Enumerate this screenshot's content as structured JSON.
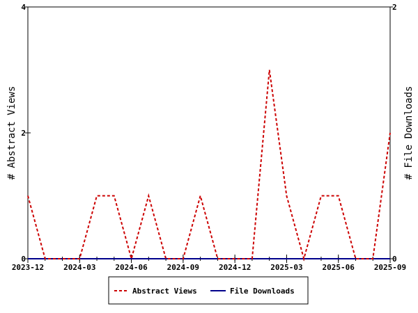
{
  "chart_data": {
    "type": "line",
    "x": [
      "2023-12",
      "2024-01",
      "2024-02",
      "2024-03",
      "2024-04",
      "2024-05",
      "2024-06",
      "2024-07",
      "2024-08",
      "2024-09",
      "2024-10",
      "2024-11",
      "2024-12",
      "2025-01",
      "2025-02",
      "2025-03",
      "2025-04",
      "2025-05",
      "2025-06",
      "2025-07",
      "2025-08",
      "2025-09"
    ],
    "x_ticks": [
      "2023-12",
      "2024-03",
      "2024-06",
      "2024-09",
      "2024-12",
      "2025-03",
      "2025-06",
      "2025-09"
    ],
    "series": [
      {
        "name": "Abstract Views",
        "axis": "left",
        "color": "#cc0000",
        "dash": "dashed",
        "values": [
          1,
          0,
          0,
          0,
          1,
          1,
          0,
          1,
          0,
          0,
          1,
          0,
          0,
          0,
          3,
          1,
          0,
          1,
          1,
          0,
          0,
          2
        ]
      },
      {
        "name": "File Downloads",
        "axis": "right",
        "color": "#00008b",
        "dash": "solid",
        "values": [
          0,
          0,
          0,
          0,
          0,
          0,
          0,
          0,
          0,
          0,
          0,
          0,
          0,
          0,
          0,
          0,
          0,
          0,
          0,
          0,
          0,
          0
        ]
      }
    ],
    "ylabel": "# Abstract Views",
    "y2label": "# File Downloads",
    "ylim": [
      0,
      4
    ],
    "y2lim": [
      0,
      2
    ],
    "y_ticks": [
      "0",
      "2",
      "4"
    ],
    "y2_ticks": [
      "0",
      "2"
    ],
    "grid": false,
    "legend_position": "bottom"
  }
}
